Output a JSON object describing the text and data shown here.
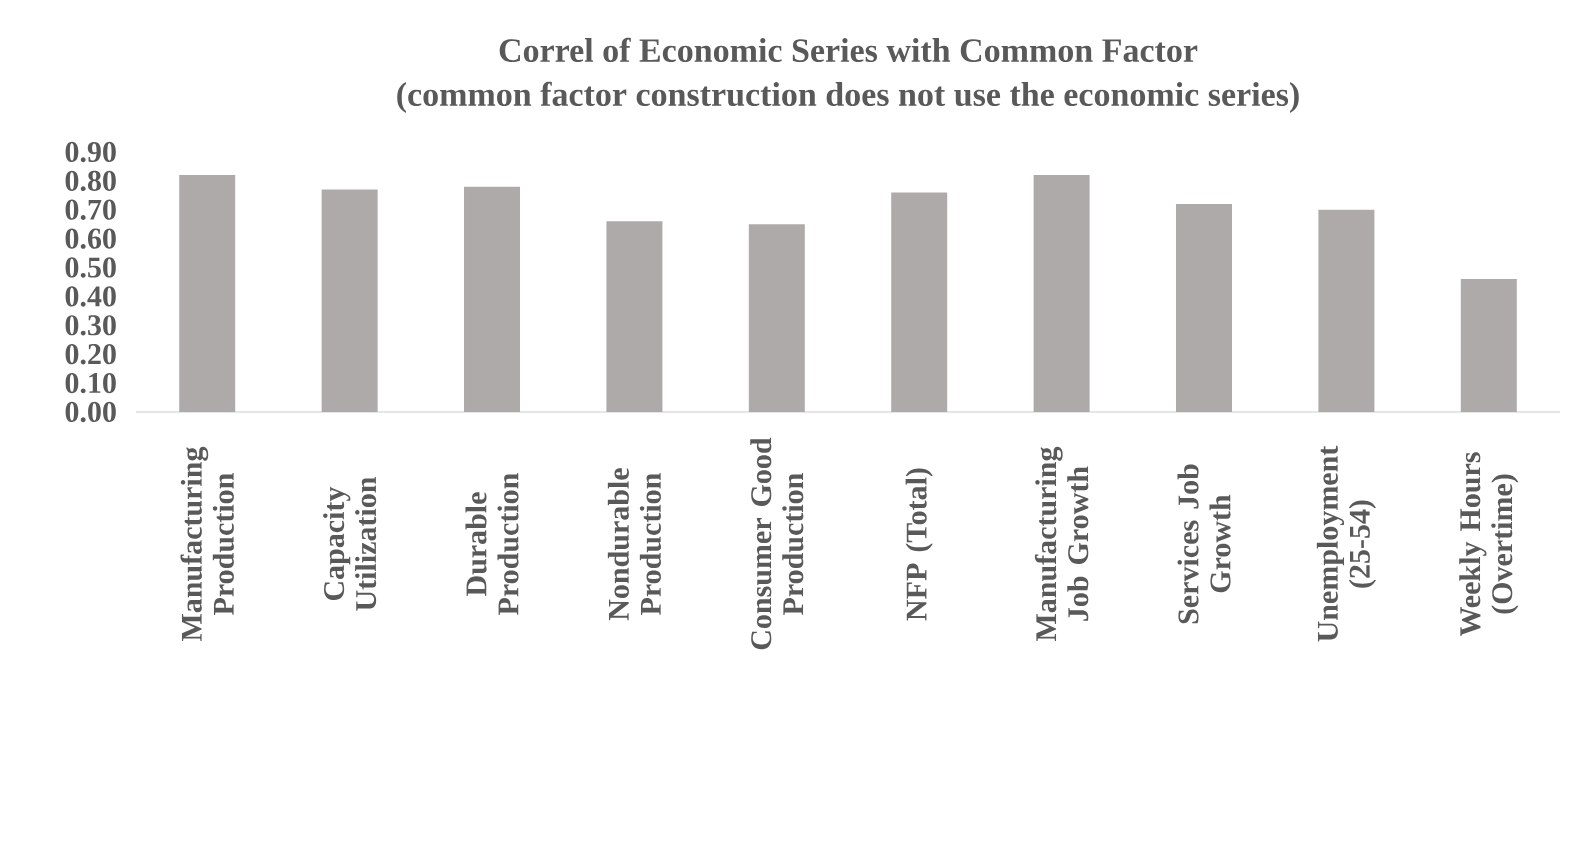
{
  "chart_data": {
    "type": "bar",
    "title": "Correl of Economic Series with Common Factor\n(common factor construction does not use the economic series)",
    "categories": [
      "Manufacturing Production",
      "Capacity Utilization",
      "Durable Production",
      "Nondurable Production",
      "Consumer Good Production",
      "NFP (Total)",
      "Manufacturing Job Growth",
      "Services Job Growth",
      "Unemployment (25-54)",
      "Weekly Hours (Overtime)"
    ],
    "values": [
      0.82,
      0.77,
      0.78,
      0.66,
      0.65,
      0.76,
      0.82,
      0.72,
      0.7,
      0.46
    ],
    "color": "#aeaaaa",
    "ylim": [
      0,
      0.9
    ],
    "yticks": [
      {
        "value": 0,
        "label": "0.00"
      },
      {
        "value": 0.1,
        "label": "0.10"
      },
      {
        "value": 0.2,
        "label": "0.20"
      },
      {
        "value": 0.3,
        "label": "0.30"
      },
      {
        "value": 0.4,
        "label": "0.40"
      },
      {
        "value": 0.5,
        "label": "0.50"
      },
      {
        "value": 0.6,
        "label": "0.60"
      },
      {
        "value": 0.7,
        "label": "0.70"
      },
      {
        "value": 0.8,
        "label": "0.80"
      },
      {
        "value": 0.9,
        "label": "0.90"
      }
    ],
    "grid": false
  }
}
